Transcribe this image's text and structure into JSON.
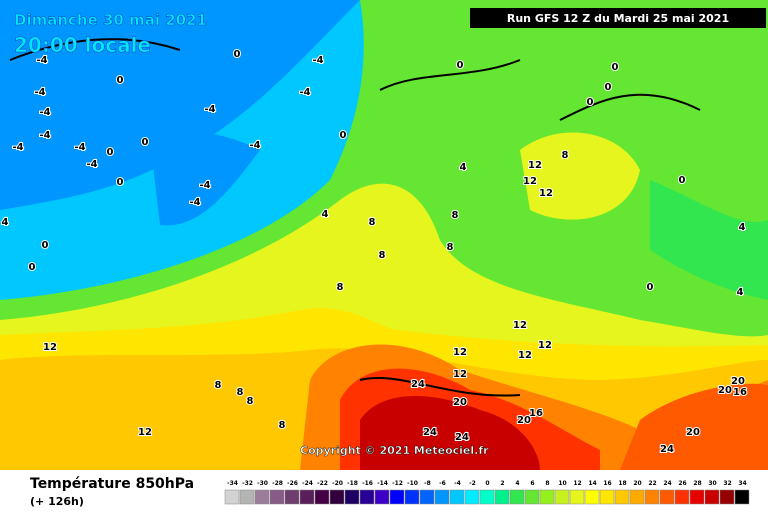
{
  "header": {
    "date": "Dimanche 30 mai 2021",
    "time": "20:00 locale",
    "run": "Run GFS 12 Z du Mardi 25 mai 2021"
  },
  "copyright": "Copyright © 2021 Meteociel.fr",
  "footer": {
    "title": "Température 850hPa",
    "lead": "(+ 126h)"
  },
  "contour_labels": [
    -4,
    -4,
    -4,
    -4,
    -4,
    -4,
    -4,
    0,
    0,
    0,
    0,
    -4,
    -4,
    -4,
    -4,
    0,
    -4,
    -4,
    0,
    0,
    0,
    0,
    0,
    0,
    0,
    0,
    0,
    4,
    4,
    4,
    8,
    12,
    12,
    12,
    8,
    8,
    8,
    8,
    8,
    12,
    12,
    8,
    8,
    8,
    8,
    12,
    12,
    12,
    12,
    12,
    24,
    20,
    24,
    24,
    16,
    20,
    20,
    24,
    20,
    20,
    16,
    4,
    4
  ],
  "scale": {
    "values": [
      -34,
      -32,
      -30,
      -28,
      -26,
      -24,
      -22,
      -20,
      -18,
      -16,
      -14,
      -12,
      -10,
      -8,
      -6,
      -4,
      -2,
      0,
      2,
      4,
      6,
      8,
      10,
      12,
      14,
      16,
      18,
      20,
      22,
      24,
      26,
      28,
      30,
      32,
      34
    ],
    "colors": [
      "#d2d2d2",
      "#b4b4b4",
      "#9b7d9b",
      "#875a87",
      "#6e3c6e",
      "#5a1e5a",
      "#460046",
      "#32003c",
      "#1e0064",
      "#280096",
      "#3c00c8",
      "#0000ff",
      "#0032ff",
      "#0064ff",
      "#0096ff",
      "#00c8ff",
      "#00ebff",
      "#00ffc8",
      "#00f08c",
      "#32e650",
      "#64e632",
      "#96f01e",
      "#c8f01e",
      "#e6f51e",
      "#ffff00",
      "#ffe600",
      "#ffc800",
      "#ffaa00",
      "#ff8200",
      "#ff5a00",
      "#ff3200",
      "#e60000",
      "#c80000",
      "#960000",
      "#000000"
    ]
  }
}
